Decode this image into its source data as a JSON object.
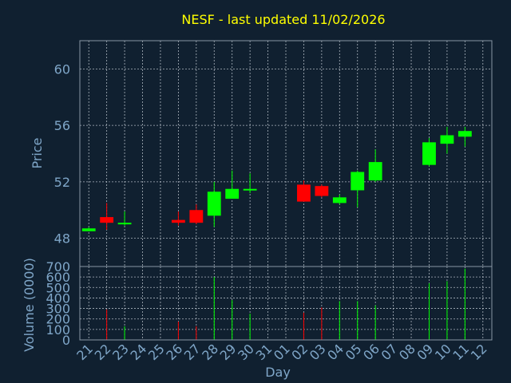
{
  "chart_data": {
    "type": "candlestick",
    "title": "NESF - last updated 11/02/2026",
    "price_panel": {
      "ylabel": "Price",
      "ylim": [
        46,
        62
      ],
      "yticks": [
        48,
        52,
        56,
        60
      ],
      "grid": true
    },
    "volume_panel": {
      "ylabel": "Volume (0000)",
      "ylim": [
        0,
        700
      ],
      "yticks": [
        0,
        100,
        200,
        300,
        400,
        500,
        600,
        700
      ],
      "grid": true
    },
    "xlabel": "Day",
    "x_ticks": [
      "21",
      "22",
      "23",
      "24",
      "25",
      "26",
      "27",
      "28",
      "29",
      "30",
      "31",
      "01",
      "02",
      "03",
      "04",
      "05",
      "06",
      "07",
      "08",
      "09",
      "10",
      "11",
      "12"
    ],
    "colors": {
      "up": "#00ff00",
      "down": "#ff0000"
    },
    "candles": [
      {
        "day": "21",
        "open": 48.5,
        "high": 48.8,
        "low": 48.5,
        "close": 48.7,
        "volume": 0
      },
      {
        "day": "22",
        "open": 49.5,
        "high": 50.5,
        "low": 48.6,
        "close": 49.1,
        "volume": 290
      },
      {
        "day": "23",
        "open": 49.0,
        "high": 49.9,
        "low": 48.9,
        "close": 49.1,
        "volume": 130
      },
      {
        "day": "26",
        "open": 49.3,
        "high": 49.9,
        "low": 48.9,
        "close": 49.1,
        "volume": 175
      },
      {
        "day": "27",
        "open": 50.0,
        "high": 50.4,
        "low": 49.0,
        "close": 49.1,
        "volume": 130
      },
      {
        "day": "28",
        "open": 49.6,
        "high": 52.0,
        "low": 48.8,
        "close": 51.3,
        "volume": 600
      },
      {
        "day": "29",
        "open": 50.8,
        "high": 52.8,
        "low": 50.8,
        "close": 51.5,
        "volume": 380
      },
      {
        "day": "30",
        "open": 51.4,
        "high": 52.6,
        "low": 51.2,
        "close": 51.5,
        "volume": 250
      },
      {
        "day": "02",
        "open": 51.8,
        "high": 52.1,
        "low": 50.6,
        "close": 50.6,
        "volume": 260
      },
      {
        "day": "03",
        "open": 51.7,
        "high": 51.8,
        "low": 50.9,
        "close": 51.0,
        "volume": 310
      },
      {
        "day": "04",
        "open": 50.5,
        "high": 51.1,
        "low": 50.4,
        "close": 50.9,
        "volume": 370
      },
      {
        "day": "05",
        "open": 51.4,
        "high": 52.8,
        "low": 50.2,
        "close": 52.7,
        "volume": 370
      },
      {
        "day": "06",
        "open": 52.1,
        "high": 54.3,
        "low": 52.0,
        "close": 53.4,
        "volume": 330
      },
      {
        "day": "09",
        "open": 53.2,
        "high": 55.1,
        "low": 53.1,
        "close": 54.8,
        "volume": 540
      },
      {
        "day": "10",
        "open": 54.7,
        "high": 55.9,
        "low": 54.0,
        "close": 55.3,
        "volume": 560
      },
      {
        "day": "11",
        "open": 55.2,
        "high": 55.9,
        "low": 54.5,
        "close": 55.6,
        "volume": 680
      }
    ]
  }
}
